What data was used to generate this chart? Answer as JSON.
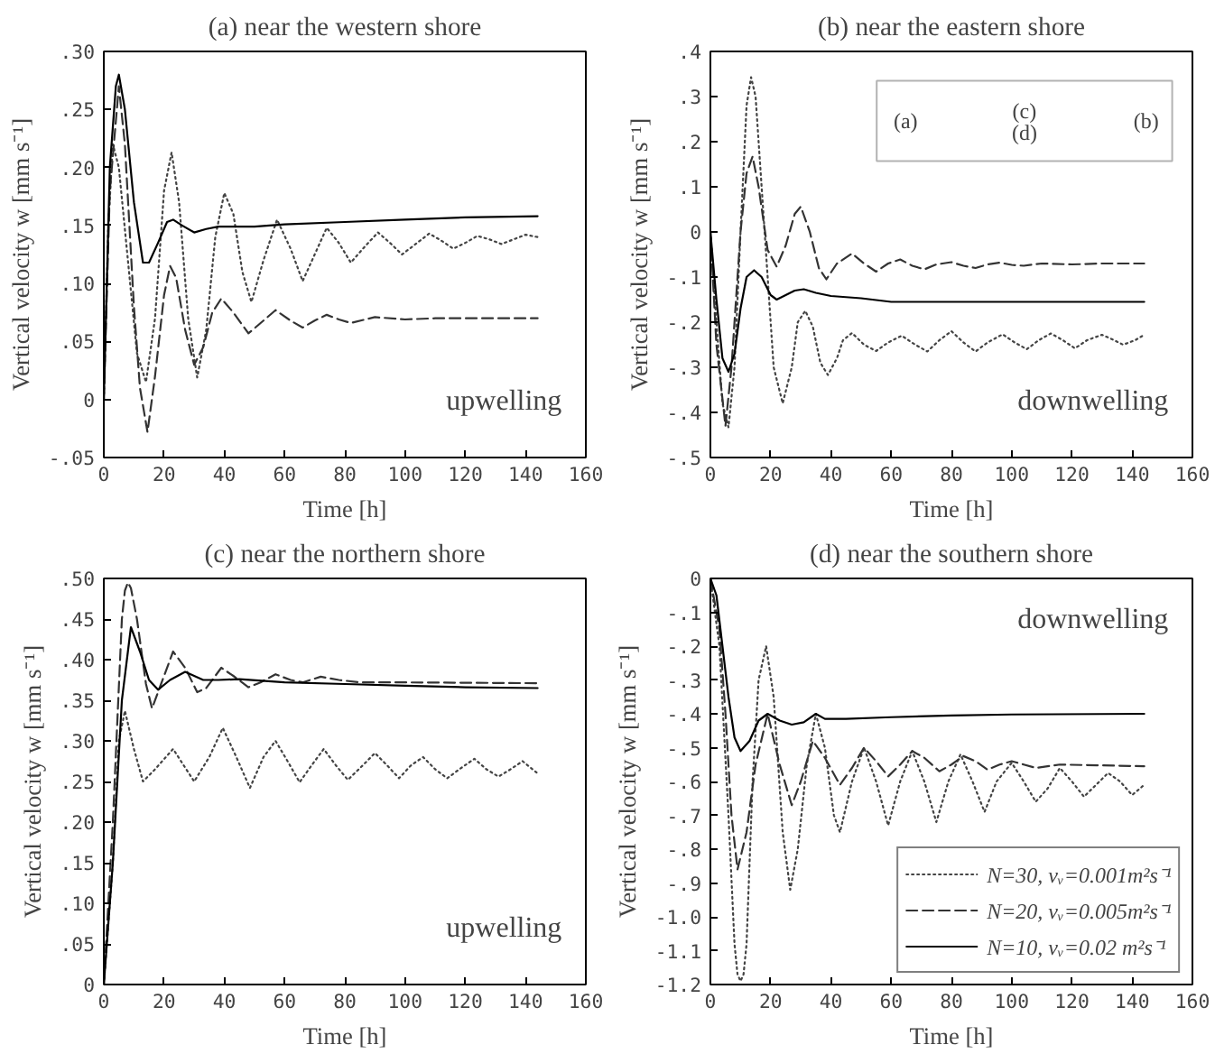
{
  "chart_data": [
    {
      "type": "line",
      "title": "(a) near the western shore",
      "xlabel": "Time [h]",
      "ylabel": "Vertical velocity w [mm s⁻¹]",
      "xlim": [
        0,
        160
      ],
      "xticks": [
        0,
        20,
        40,
        60,
        80,
        100,
        120,
        140,
        160
      ],
      "ylim": [
        -0.05,
        0.3
      ],
      "yticks": [
        {
          "value": 0.3,
          "label": ".30"
        },
        {
          "value": 0.25,
          "label": ".25"
        },
        {
          "value": 0.2,
          "label": ".20"
        },
        {
          "value": 0.15,
          "label": ".15"
        },
        {
          "value": 0.1,
          "label": ".10"
        },
        {
          "value": 0.05,
          "label": ".05"
        },
        0,
        {
          "value": -0.05,
          "label": "-.05"
        }
      ],
      "legend": false,
      "annotations": [
        "upwelling"
      ],
      "series": [
        {
          "color": "#444444",
          "line_style": "dotted",
          "x": [
            0,
            1.5,
            3,
            5,
            8,
            11,
            14,
            17,
            20,
            22.5,
            25,
            28,
            31,
            34,
            37,
            40,
            43,
            46,
            49,
            53,
            57.5,
            62,
            66,
            70,
            74,
            78,
            82,
            86,
            91,
            95,
            99,
            103,
            108,
            112,
            116,
            120,
            124,
            128,
            132,
            136,
            140,
            144
          ],
          "values": [
            0,
            0.15,
            0.22,
            0.2,
            0.12,
            0.04,
            0.015,
            0.07,
            0.18,
            0.213,
            0.17,
            0.07,
            0.019,
            0.06,
            0.14,
            0.178,
            0.16,
            0.11,
            0.084,
            0.12,
            0.155,
            0.13,
            0.102,
            0.125,
            0.148,
            0.135,
            0.118,
            0.13,
            0.144,
            0.135,
            0.125,
            0.133,
            0.143,
            0.137,
            0.13,
            0.135,
            0.141,
            0.138,
            0.134,
            0.138,
            0.142,
            0.14
          ]
        },
        {
          "color": "#333333",
          "line_style": "dashed",
          "x": [
            0,
            2,
            5,
            7,
            10,
            12,
            14.5,
            17,
            20,
            22,
            24,
            27,
            30,
            33,
            36,
            39,
            43,
            48,
            53,
            57,
            62,
            66,
            70,
            74,
            78,
            82,
            90,
            100,
            110,
            144
          ],
          "values": [
            0,
            0.18,
            0.27,
            0.22,
            0.08,
            0.01,
            -0.028,
            0.02,
            0.09,
            0.115,
            0.105,
            0.06,
            0.03,
            0.045,
            0.075,
            0.087,
            0.075,
            0.057,
            0.068,
            0.077,
            0.068,
            0.062,
            0.068,
            0.073,
            0.069,
            0.066,
            0.071,
            0.069,
            0.07,
            0.07
          ]
        },
        {
          "color": "#000000",
          "line_style": "solid",
          "x": [
            0,
            2,
            4,
            5,
            7,
            10,
            13,
            15,
            18,
            21,
            23,
            26,
            30,
            34,
            38,
            50,
            60,
            80,
            100,
            120,
            144
          ],
          "values": [
            0,
            0.2,
            0.27,
            0.28,
            0.25,
            0.17,
            0.118,
            0.118,
            0.135,
            0.153,
            0.155,
            0.15,
            0.144,
            0.147,
            0.149,
            0.149,
            0.151,
            0.153,
            0.155,
            0.157,
            0.158
          ]
        }
      ]
    },
    {
      "type": "line",
      "title": "(b) near the eastern shore",
      "xlabel": "Time [h]",
      "ylabel": "Vertical velocity w [mm s⁻¹]",
      "xlim": [
        0,
        160
      ],
      "xticks": [
        0,
        20,
        40,
        60,
        80,
        100,
        120,
        140,
        160
      ],
      "ylim": [
        -0.5,
        0.4
      ],
      "yticks": [
        {
          "value": 0.4,
          "label": ".4"
        },
        {
          "value": 0.3,
          "label": ".3"
        },
        {
          "value": 0.2,
          "label": ".2"
        },
        {
          "value": 0.1,
          "label": ".1"
        },
        0,
        {
          "value": -0.1,
          "label": "-.1"
        },
        {
          "value": -0.2,
          "label": "-.2"
        },
        {
          "value": -0.3,
          "label": "-.3"
        },
        {
          "value": -0.4,
          "label": "-.4"
        },
        {
          "value": -0.5,
          "label": "-.5"
        }
      ],
      "legend": false,
      "annotations": [
        "downwelling",
        "(a)",
        "(c)",
        "(d)",
        "(b)"
      ],
      "series": [
        {
          "color": "#444444",
          "line_style": "dotted",
          "x": [
            0,
            2,
            4,
            6,
            8,
            10,
            12,
            13.5,
            15,
            18,
            21,
            24,
            27,
            29,
            31.5,
            34,
            36.5,
            39,
            42,
            44,
            47,
            51,
            55,
            59,
            63.5,
            68,
            72,
            76,
            80,
            84,
            88,
            92,
            97,
            101,
            105,
            109,
            113,
            117,
            121,
            125,
            130,
            134,
            137,
            141,
            144
          ],
          "values": [
            0,
            -0.2,
            -0.38,
            -0.433,
            -0.3,
            0.0,
            0.28,
            0.343,
            0.3,
            0.0,
            -0.3,
            -0.38,
            -0.3,
            -0.2,
            -0.175,
            -0.21,
            -0.29,
            -0.317,
            -0.28,
            -0.24,
            -0.224,
            -0.25,
            -0.264,
            -0.245,
            -0.23,
            -0.25,
            -0.265,
            -0.24,
            -0.22,
            -0.245,
            -0.265,
            -0.245,
            -0.227,
            -0.245,
            -0.26,
            -0.24,
            -0.225,
            -0.24,
            -0.258,
            -0.24,
            -0.228,
            -0.24,
            -0.25,
            -0.24,
            -0.228
          ]
        },
        {
          "color": "#333333",
          "line_style": "dashed",
          "x": [
            0,
            2,
            5,
            7,
            10,
            12,
            14,
            16,
            19,
            22,
            25,
            28,
            30,
            33,
            36,
            38.5,
            42,
            47,
            51,
            55,
            59,
            63,
            67,
            71,
            75,
            80,
            84,
            88,
            92,
            96,
            100,
            104,
            110,
            120,
            130,
            144
          ],
          "values": [
            0,
            -0.25,
            -0.43,
            -0.3,
            0.0,
            0.13,
            0.167,
            0.1,
            -0.04,
            -0.077,
            -0.03,
            0.04,
            0.056,
            0.0,
            -0.08,
            -0.105,
            -0.07,
            -0.048,
            -0.07,
            -0.088,
            -0.07,
            -0.061,
            -0.075,
            -0.083,
            -0.072,
            -0.067,
            -0.075,
            -0.08,
            -0.072,
            -0.068,
            -0.073,
            -0.075,
            -0.07,
            -0.072,
            -0.07,
            -0.07
          ]
        },
        {
          "color": "#000000",
          "line_style": "solid",
          "x": [
            0,
            2,
            4,
            6,
            8,
            10,
            12,
            14.5,
            17,
            20,
            22,
            25,
            28,
            31,
            35,
            40,
            50,
            60,
            80,
            100,
            144
          ],
          "values": [
            0,
            -0.15,
            -0.28,
            -0.31,
            -0.27,
            -0.17,
            -0.1,
            -0.085,
            -0.1,
            -0.14,
            -0.15,
            -0.14,
            -0.13,
            -0.127,
            -0.135,
            -0.142,
            -0.147,
            -0.155,
            -0.155,
            -0.155,
            -0.155
          ]
        }
      ]
    },
    {
      "type": "line",
      "title": "(c) near the northern shore",
      "xlabel": "Time [h]",
      "ylabel": "Vertical velocity w [mm s⁻¹]",
      "xlim": [
        0,
        160
      ],
      "xticks": [
        0,
        20,
        40,
        60,
        80,
        100,
        120,
        140,
        160
      ],
      "ylim": [
        0,
        0.5
      ],
      "yticks": [
        {
          "value": 0.5,
          "label": ".50"
        },
        {
          "value": 0.45,
          "label": ".45"
        },
        {
          "value": 0.4,
          "label": ".40"
        },
        {
          "value": 0.35,
          "label": ".35"
        },
        {
          "value": 0.3,
          "label": ".30"
        },
        {
          "value": 0.25,
          "label": ".25"
        },
        {
          "value": 0.2,
          "label": ".20"
        },
        {
          "value": 0.15,
          "label": ".15"
        },
        {
          "value": 0.1,
          "label": ".10"
        },
        {
          "value": 0.05,
          "label": ".05"
        },
        0
      ],
      "legend": false,
      "annotations": [
        "upwelling"
      ],
      "series": [
        {
          "color": "#444444",
          "line_style": "dotted",
          "x": [
            0,
            3,
            5,
            7,
            10,
            13,
            17,
            23,
            30,
            35,
            39.5,
            44,
            48.5,
            53,
            57,
            61,
            65,
            69,
            73,
            77,
            81,
            86,
            90,
            94,
            98,
            102,
            106,
            110,
            114,
            118,
            123,
            127,
            131,
            135,
            139,
            144
          ],
          "values": [
            0,
            0.15,
            0.3,
            0.337,
            0.29,
            0.25,
            0.265,
            0.29,
            0.25,
            0.28,
            0.316,
            0.28,
            0.242,
            0.28,
            0.3,
            0.275,
            0.249,
            0.27,
            0.29,
            0.27,
            0.252,
            0.27,
            0.285,
            0.27,
            0.254,
            0.27,
            0.28,
            0.265,
            0.254,
            0.265,
            0.278,
            0.265,
            0.256,
            0.265,
            0.275,
            0.26
          ]
        },
        {
          "color": "#333333",
          "line_style": "dashed",
          "x": [
            0,
            3,
            6,
            7,
            8,
            9,
            11,
            14,
            16,
            19,
            23,
            27,
            31,
            34,
            39,
            43,
            48,
            52,
            57,
            62,
            66,
            72,
            78,
            85,
            100,
            144
          ],
          "values": [
            0,
            0.2,
            0.45,
            0.485,
            0.495,
            0.488,
            0.45,
            0.37,
            0.34,
            0.37,
            0.41,
            0.39,
            0.36,
            0.365,
            0.39,
            0.38,
            0.366,
            0.372,
            0.382,
            0.375,
            0.372,
            0.379,
            0.375,
            0.372,
            0.372,
            0.371
          ]
        },
        {
          "color": "#000000",
          "line_style": "solid",
          "x": [
            0,
            3,
            6,
            9,
            12,
            15,
            18,
            22,
            27,
            33,
            38,
            45,
            60,
            80,
            100,
            120,
            144
          ],
          "values": [
            0,
            0.15,
            0.35,
            0.44,
            0.41,
            0.375,
            0.363,
            0.375,
            0.385,
            0.375,
            0.375,
            0.376,
            0.372,
            0.37,
            0.368,
            0.366,
            0.365
          ]
        }
      ]
    },
    {
      "type": "line",
      "title": "(d) near the southern shore",
      "xlabel": "Time [h]",
      "ylabel": "Vertical velocity w [mm s⁻¹]",
      "xlim": [
        0,
        160
      ],
      "xticks": [
        0,
        20,
        40,
        60,
        80,
        100,
        120,
        140,
        160
      ],
      "ylim": [
        -1.2,
        0
      ],
      "yticks": [
        0,
        {
          "value": -0.1,
          "label": "-.1"
        },
        {
          "value": -0.2,
          "label": "-.2"
        },
        {
          "value": -0.3,
          "label": "-.3"
        },
        {
          "value": -0.4,
          "label": "-.4"
        },
        {
          "value": -0.5,
          "label": "-.5"
        },
        {
          "value": -0.6,
          "label": "-.6"
        },
        {
          "value": -0.7,
          "label": "-.7"
        },
        {
          "value": -0.8,
          "label": "-.8"
        },
        {
          "value": -0.9,
          "label": "-.9"
        },
        {
          "value": -1.0,
          "label": "-1.0"
        },
        {
          "value": -1.1,
          "label": "-1.1"
        },
        {
          "value": -1.2,
          "label": "-1.2"
        }
      ],
      "legend": "bottom right",
      "annotations": [
        "downwelling"
      ],
      "series": [
        {
          "name": "N=30, νᵥ=0.001m²s⁻¹",
          "color": "#444444",
          "line_style": "dotted",
          "x": [
            0,
            3,
            6,
            8,
            9,
            10,
            11,
            12,
            14,
            16,
            18.5,
            21,
            24,
            26.5,
            29,
            32,
            35,
            38,
            41,
            43,
            47,
            51,
            55,
            59,
            63,
            67,
            71,
            75,
            79,
            83,
            87,
            91,
            95,
            100,
            104,
            108,
            112,
            116,
            120,
            124,
            128,
            132,
            136,
            140,
            144
          ],
          "values": [
            0,
            -0.2,
            -0.7,
            -1.08,
            -1.17,
            -1.19,
            -1.17,
            -1.08,
            -0.6,
            -0.3,
            -0.2,
            -0.35,
            -0.75,
            -0.92,
            -0.8,
            -0.55,
            -0.4,
            -0.5,
            -0.7,
            -0.75,
            -0.6,
            -0.5,
            -0.6,
            -0.73,
            -0.6,
            -0.51,
            -0.6,
            -0.72,
            -0.6,
            -0.52,
            -0.6,
            -0.69,
            -0.6,
            -0.545,
            -0.6,
            -0.66,
            -0.62,
            -0.56,
            -0.6,
            -0.645,
            -0.61,
            -0.575,
            -0.6,
            -0.64,
            -0.61
          ]
        },
        {
          "name": "N=20, νᵥ=0.005m²s⁻¹",
          "color": "#333333",
          "line_style": "dashed",
          "x": [
            0,
            3,
            5,
            7,
            9,
            12,
            15,
            19,
            23,
            27,
            30,
            34,
            38,
            43,
            47,
            51,
            55,
            59,
            63,
            67,
            71,
            76,
            80,
            84,
            88,
            92,
            96,
            100,
            104,
            108,
            116,
            144
          ],
          "values": [
            0,
            -0.15,
            -0.4,
            -0.7,
            -0.86,
            -0.75,
            -0.55,
            -0.4,
            -0.55,
            -0.67,
            -0.6,
            -0.48,
            -0.53,
            -0.61,
            -0.56,
            -0.5,
            -0.54,
            -0.585,
            -0.55,
            -0.51,
            -0.53,
            -0.57,
            -0.55,
            -0.525,
            -0.54,
            -0.565,
            -0.55,
            -0.54,
            -0.55,
            -0.56,
            -0.55,
            -0.555
          ]
        },
        {
          "name": "N=10, νᵥ=0.02 m²s⁻¹",
          "color": "#000000",
          "line_style": "solid",
          "x": [
            0,
            2,
            4,
            6,
            8,
            10,
            13,
            16,
            19,
            23,
            27,
            31,
            35,
            38,
            45,
            60,
            80,
            100,
            144
          ],
          "values": [
            0,
            -0.05,
            -0.2,
            -0.35,
            -0.47,
            -0.51,
            -0.48,
            -0.42,
            -0.4,
            -0.42,
            -0.432,
            -0.425,
            -0.4,
            -0.415,
            -0.415,
            -0.41,
            -0.405,
            -0.402,
            -0.4
          ]
        }
      ]
    }
  ]
}
